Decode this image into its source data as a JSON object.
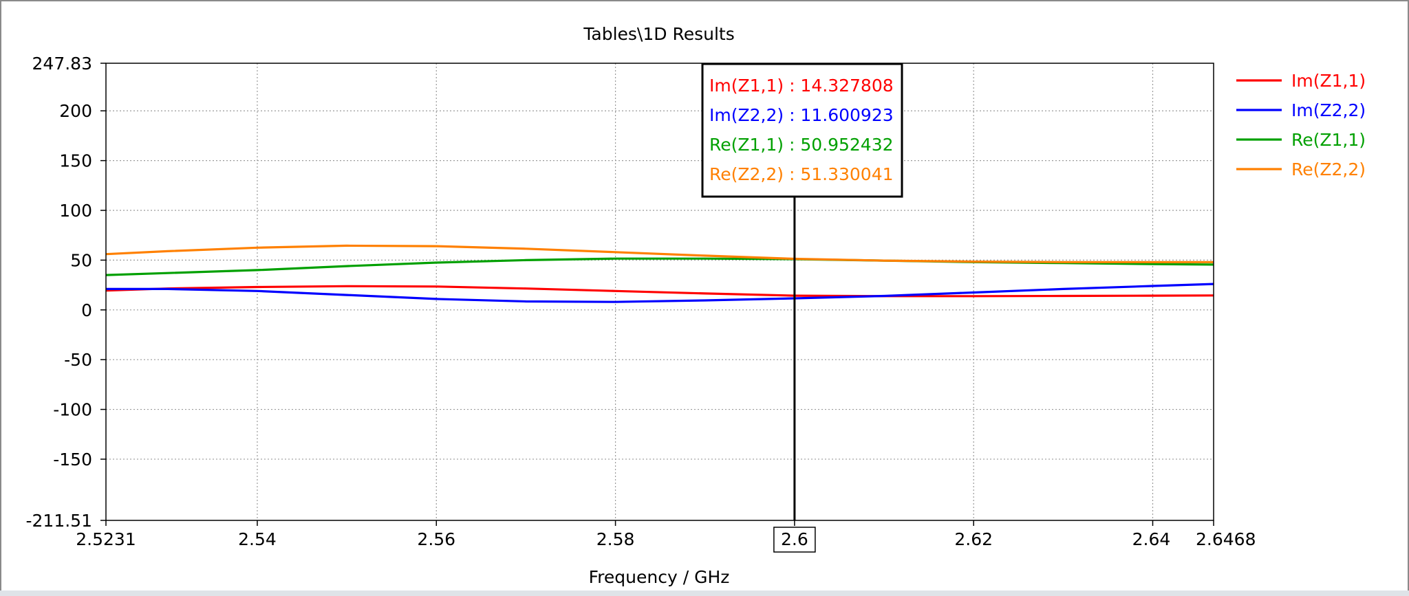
{
  "chart_data": {
    "type": "line",
    "title": "Tables\\1D Results",
    "xlabel": "Frequency / GHz",
    "ylabel": "",
    "xlim": [
      2.5231,
      2.6468
    ],
    "ylim": [
      -211.51,
      247.83
    ],
    "x_ticks": [
      "2.5231",
      "2.54",
      "2.56",
      "2.58",
      "2.6",
      "2.62",
      "2.64",
      "2.6468"
    ],
    "y_ticks": [
      "247.83",
      "200",
      "150",
      "100",
      "50",
      "0",
      "-50",
      "-100",
      "-150",
      "-211.51"
    ],
    "grid": true,
    "legend_position": "right",
    "marker": {
      "x": 2.6,
      "x_label": "2.6",
      "readouts": [
        {
          "label": "Im(Z1,1) : 14.327808",
          "color": "#ff0000"
        },
        {
          "label": "Im(Z2,2) : 11.600923",
          "color": "#0000ff"
        },
        {
          "label": "Re(Z1,1) : 50.952432",
          "color": "#00a000"
        },
        {
          "label": "Re(Z2,2) : 51.330041",
          "color": "#ff8000"
        }
      ]
    },
    "x": [
      2.5231,
      2.53,
      2.54,
      2.55,
      2.56,
      2.57,
      2.58,
      2.59,
      2.6,
      2.61,
      2.62,
      2.63,
      2.64,
      2.6468
    ],
    "series": [
      {
        "name": "Im(Z1,1)",
        "color": "#ff0000",
        "values": [
          19.5,
          21.5,
          23,
          23.8,
          23.5,
          21.5,
          19,
          16.5,
          14.3,
          13.8,
          13.8,
          14,
          14.3,
          14.5
        ]
      },
      {
        "name": "Im(Z2,2)",
        "color": "#0000ff",
        "values": [
          21,
          21,
          19,
          15,
          11,
          8.5,
          8,
          9.5,
          11.6,
          14,
          17.5,
          21,
          24,
          26
        ]
      },
      {
        "name": "Re(Z1,1)",
        "color": "#00a000",
        "values": [
          35,
          37,
          40,
          44,
          47.5,
          50,
          51.5,
          51.5,
          51,
          49.5,
          48,
          47,
          46,
          45.5
        ]
      },
      {
        "name": "Re(Z2,2)",
        "color": "#ff8000",
        "values": [
          56,
          59,
          62.5,
          64.5,
          64,
          61.5,
          58,
          54.5,
          51.3,
          49.5,
          48.5,
          48,
          48,
          48
        ]
      }
    ]
  }
}
